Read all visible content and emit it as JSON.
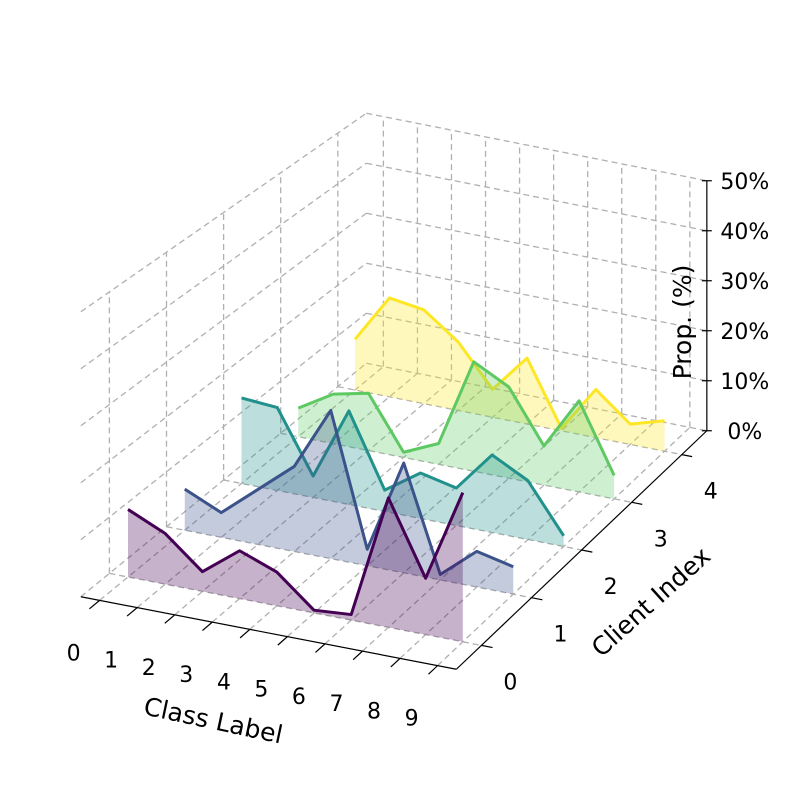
{
  "chart_data": {
    "type": "line3d",
    "xlabel": "Class Label",
    "ylabel": "Client Index",
    "zlabel": "Prop. (%)",
    "categories": [
      "0",
      "1",
      "2",
      "3",
      "4",
      "5",
      "6",
      "7",
      "8",
      "9"
    ],
    "clients": [
      "0",
      "1",
      "2",
      "3",
      "4"
    ],
    "series": [
      {
        "color": "#440154",
        "values": [
          12,
          9,
          3.5,
          8.5,
          6,
          0.5,
          1,
          23,
          10,
          26.5
        ]
      },
      {
        "color": "#3b528b",
        "values": [
          7.5,
          4.5,
          10,
          15.5,
          27,
          3,
          20,
          1,
          6.5,
          5
        ]
      },
      {
        "color": "#21918c",
        "values": [
          16,
          15.5,
          4,
          17.5,
          4,
          8.5,
          7,
          14.5,
          11,
          2
        ]
      },
      {
        "color": "#5ec962",
        "values": [
          5.5,
          9.5,
          11,
          1,
          4,
          21,
          17.5,
          7.5,
          17.5,
          4.5
        ]
      },
      {
        "color": "#fde725",
        "values": [
          10,
          19.5,
          18.5,
          13.5,
          5.5,
          13,
          0.5,
          9.5,
          4,
          6
        ]
      }
    ],
    "zlim": [
      0,
      50
    ],
    "zticks": [
      {
        "value": 0,
        "label": "0%"
      },
      {
        "value": 10,
        "label": "10%"
      },
      {
        "value": 20,
        "label": "20%"
      },
      {
        "value": 30,
        "label": "30%"
      },
      {
        "value": 40,
        "label": "40%"
      },
      {
        "value": 50,
        "label": "50%"
      }
    ],
    "grid": true
  }
}
